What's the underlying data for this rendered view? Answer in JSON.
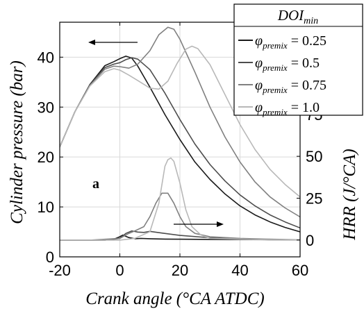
{
  "chart_data": {
    "type": "line",
    "panel_label": "a",
    "xlabel": "Crank angle (°CA ATDC)",
    "ylabel_left": "Cylinder pressure (bar)",
    "ylabel_right": "HRR (J/°CA)",
    "xlim": [
      -20,
      60
    ],
    "ylim_left": [
      0,
      47
    ],
    "ylim_right": [
      -10,
      130
    ],
    "xticks": [
      -20,
      0,
      20,
      40,
      60
    ],
    "yticks_left": [
      0,
      10,
      20,
      30,
      40
    ],
    "yticks_right": [
      0,
      25,
      50,
      75
    ],
    "grid": true,
    "legend_title": "DOI_min",
    "legend_placement": "top-right",
    "annotations": [
      "left arrow: pressure curves use left axis",
      "right arrow: HRR curves use right axis"
    ],
    "series": [
      {
        "name": "φ_premix = 0.25",
        "color": "#1a1a1a",
        "pressure": {
          "x": [
            -20,
            -15,
            -10,
            -5,
            -2,
            0,
            2,
            4,
            6,
            10,
            15,
            20,
            25,
            30,
            35,
            40,
            45,
            50,
            55,
            60
          ],
          "y": [
            22,
            29,
            34.5,
            38.3,
            39.1,
            39.7,
            40.2,
            39.8,
            38.2,
            34,
            28.5,
            23.5,
            19,
            15.5,
            12.6,
            10.2,
            8.4,
            7,
            5.9,
            5
          ]
        },
        "hrr": {
          "x": [
            -20,
            -10,
            -5,
            -2,
            0,
            1,
            3,
            5,
            7,
            10,
            15,
            20,
            30,
            40,
            50,
            60
          ],
          "y": [
            0,
            0,
            0,
            0.5,
            2,
            3,
            1.5,
            0.8,
            1,
            0.8,
            0.6,
            0.5,
            0.4,
            0.3,
            0.2,
            0.1
          ]
        }
      },
      {
        "name": "φ_premix = 0.5",
        "color": "#4d4d4d",
        "pressure": {
          "x": [
            -20,
            -15,
            -10,
            -5,
            -2,
            0,
            2,
            4,
            6,
            10,
            15,
            20,
            25,
            30,
            35,
            40,
            45,
            50,
            55,
            60
          ],
          "y": [
            22,
            29,
            34.4,
            37.9,
            38.6,
            38.9,
            39.5,
            39.9,
            39.6,
            37.5,
            32.8,
            27.5,
            22.6,
            18.5,
            15.2,
            12.4,
            10.2,
            8.4,
            7,
            5.8
          ]
        },
        "hrr": {
          "x": [
            -20,
            -10,
            -5,
            0,
            2,
            4,
            6,
            8,
            10,
            14,
            20,
            30,
            40,
            50,
            60
          ],
          "y": [
            0,
            0,
            0,
            1,
            4,
            5.5,
            4.8,
            4.6,
            5.2,
            4.2,
            2.8,
            1.4,
            0.7,
            0.3,
            0.1
          ]
        }
      },
      {
        "name": "φ_premix = 0.75",
        "color": "#808080",
        "pressure": {
          "x": [
            -20,
            -15,
            -10,
            -5,
            -2,
            0,
            3,
            6,
            10,
            13,
            16,
            18,
            20,
            25,
            30,
            35,
            40,
            45,
            50,
            55,
            60
          ],
          "y": [
            22,
            29,
            34.3,
            37.6,
            38.2,
            38.1,
            37.8,
            38.6,
            41.3,
            44.5,
            46,
            45.6,
            43.6,
            37,
            30,
            24,
            19,
            15,
            12,
            9.8,
            8
          ]
        },
        "hrr": {
          "x": [
            -20,
            -10,
            0,
            3,
            5,
            8,
            10,
            12,
            14,
            16,
            18,
            20,
            22,
            25,
            30,
            40,
            50,
            60
          ],
          "y": [
            0,
            0,
            1,
            4,
            5.5,
            8,
            14,
            22,
            28,
            28,
            22,
            14,
            8,
            4,
            2,
            1,
            0.5,
            0.2
          ]
        }
      },
      {
        "name": "φ_premix = 1.0",
        "color": "#b8b8b8",
        "pressure": {
          "x": [
            -20,
            -15,
            -10,
            -5,
            -2,
            0,
            3,
            6,
            10,
            13,
            16,
            19,
            22,
            24,
            26,
            30,
            35,
            40,
            45,
            50,
            55,
            60
          ],
          "y": [
            22,
            29,
            34.2,
            37.1,
            37.7,
            37.4,
            36.4,
            35.3,
            33.8,
            33.6,
            35.2,
            38.7,
            41.6,
            42.2,
            41.7,
            38.5,
            32.5,
            26.5,
            21.5,
            17.5,
            14.5,
            12
          ]
        },
        "hrr": {
          "x": [
            -20,
            -10,
            0,
            5,
            10,
            13,
            15,
            16,
            17,
            18,
            20,
            22,
            24,
            27,
            30,
            40,
            50,
            60
          ],
          "y": [
            0,
            0,
            0,
            1,
            5,
            22,
            44,
            48,
            49,
            47,
            34,
            18,
            8,
            3,
            1,
            0.5,
            0.2,
            0.1
          ]
        }
      }
    ]
  }
}
